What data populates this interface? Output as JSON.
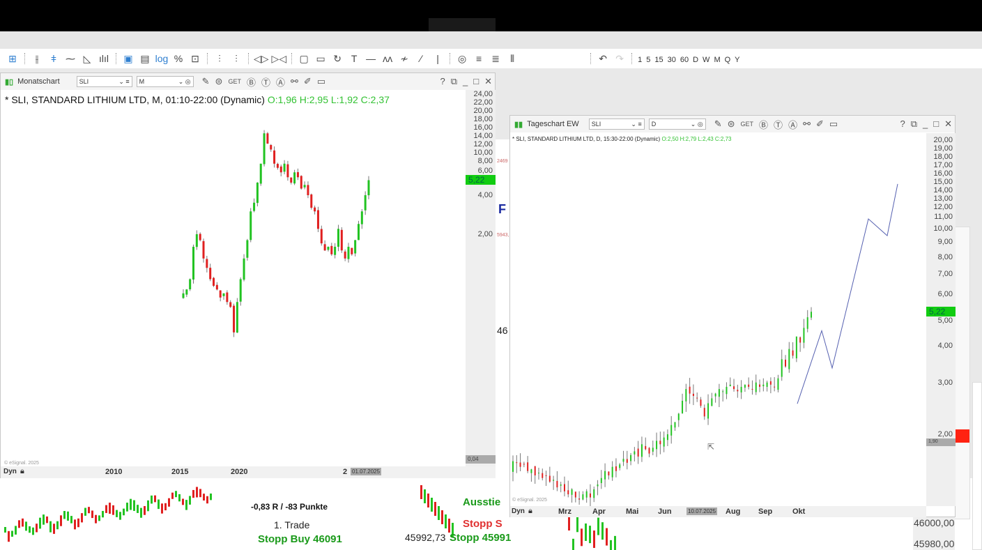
{
  "toolbar": {
    "icons": [
      {
        "name": "crosshair-icon",
        "glyph": "⊞",
        "active": true
      },
      {
        "sep": true
      },
      {
        "name": "ohlc-bars-icon",
        "glyph": "⫲"
      },
      {
        "name": "candlestick-icon",
        "glyph": "ǂ",
        "active": true
      },
      {
        "name": "line-chart-icon",
        "glyph": "⁓"
      },
      {
        "name": "area-chart-icon",
        "glyph": "◺"
      },
      {
        "name": "volume-icon",
        "glyph": "ılıl"
      },
      {
        "sep": true
      },
      {
        "name": "auto-scale-icon",
        "glyph": "▣",
        "active": true
      },
      {
        "name": "scale-icon",
        "glyph": "▤"
      },
      {
        "name": "log-scale-icon",
        "glyph": "log",
        "active": true
      },
      {
        "name": "percent-icon",
        "glyph": "%"
      },
      {
        "name": "reset-scale-icon",
        "glyph": "⊡"
      },
      {
        "sep": true
      },
      {
        "name": "expand-bars-icon",
        "glyph": "⫶"
      },
      {
        "name": "compress-bars-icon",
        "glyph": "⫶"
      },
      {
        "sep": true
      },
      {
        "name": "scroll-left-icon",
        "glyph": "◁▷"
      },
      {
        "name": "scroll-right-icon",
        "glyph": "▷◁"
      },
      {
        "sep": true
      },
      {
        "name": "frame-icon",
        "glyph": "▢"
      },
      {
        "name": "panel-icon",
        "glyph": "▭"
      },
      {
        "name": "refresh-icon",
        "glyph": "↻"
      },
      {
        "name": "text-tool-icon",
        "glyph": "T"
      },
      {
        "name": "horizontal-line-icon",
        "glyph": "—"
      },
      {
        "name": "elliott-wave-icon",
        "glyph": "ʌʌ"
      },
      {
        "name": "zigzag-icon",
        "glyph": "≁"
      },
      {
        "name": "trendline-icon",
        "glyph": "∕"
      },
      {
        "name": "vertical-line-icon",
        "glyph": "|"
      },
      {
        "sep": true
      },
      {
        "name": "target-icon",
        "glyph": "◎"
      },
      {
        "name": "menu-lines-icon",
        "glyph": "≡"
      },
      {
        "name": "list-icon",
        "glyph": "≣"
      },
      {
        "name": "columns-icon",
        "glyph": "⦀"
      }
    ],
    "undo_icon": "↶",
    "redo_icon": "↷",
    "intervals": [
      "1",
      "5",
      "15",
      "30",
      "60",
      "D",
      "W",
      "M",
      "Q",
      "Y"
    ]
  },
  "left_window": {
    "title": "Monatschart",
    "symbol": "SLI",
    "interval": "M",
    "legend": "* SLI, STANDARD LITHIUM LTD, M, 01:10-22:00 (Dynamic)",
    "ohlc": "O:1,96 H:2,95 L:1,92 C:2,37",
    "copyright": "© eSignal. 2025",
    "dyn": "Dyn",
    "cursor_date": "01.07.2025",
    "low_value": "0,04",
    "last_price": "5,22"
  },
  "right_window": {
    "title": "Tageschart EW",
    "symbol": "SLI",
    "interval": "D",
    "legend": "* SLI, STANDARD LITHIUM LTD, D, 15:30-22:00 (Dynamic)",
    "ohlc": "O:2,50 H:2,79 L:2,43 C:2,73",
    "copyright": "© eSignal. 2025",
    "dyn": "Dyn",
    "cursor_date": "10.07.2025",
    "low_value": "1,90",
    "last_price": "5,22"
  },
  "background_chart": {
    "texts": [
      "-0,83 R / -83 Punkte",
      "1. Trade",
      "Stopp Buy 46091",
      "45992,73",
      "Stopp 45991",
      "Ausstie",
      "Stopp S",
      "46000,00",
      "45980,00",
      "46",
      "F",
      "2469",
      "5943,"
    ]
  },
  "colors": {
    "up": "#22c322",
    "down": "#e02020",
    "last_price": "#11cc11",
    "wave": "#5560b0"
  },
  "chart_data": [
    {
      "type": "candlestick",
      "title": "Monatschart",
      "scale": "log",
      "ylim": [
        0.04,
        24
      ],
      "yticks": [
        "24,00",
        "22,00",
        "20,00",
        "18,00",
        "16,00",
        "14,00",
        "12,00",
        "10,00",
        "8,00",
        "6,00",
        "4,00",
        "2,00"
      ],
      "xticks": [
        "2010",
        "2015",
        "2020",
        "2"
      ],
      "closes": [
        0.7,
        0.75,
        0.9,
        1.6,
        2.0,
        1.8,
        1.3,
        1.1,
        0.9,
        0.8,
        0.75,
        0.65,
        0.7,
        0.6,
        0.55,
        0.35,
        0.6,
        0.9,
        1.3,
        1.8,
        3.0,
        3.5,
        5,
        7,
        12,
        10,
        9,
        7,
        6.5,
        6,
        7,
        5.5,
        5,
        6,
        5.5,
        4.5,
        4.8,
        4,
        3.2,
        3,
        2.2,
        1.7,
        1.5,
        1.6,
        1.4,
        1.6,
        2.2,
        1.5,
        1.3,
        1.6,
        1.4,
        1.8,
        2.4,
        3.0,
        4.0,
        5.22
      ],
      "last": 5.22
    },
    {
      "type": "candlestick",
      "title": "Tageschart EW",
      "scale": "log",
      "ylim": [
        1.9,
        20
      ],
      "yticks": [
        "20,00",
        "19,00",
        "18,00",
        "17,00",
        "16,00",
        "15,00",
        "14,00",
        "13,00",
        "12,00",
        "11,00",
        "10,00",
        "9,00",
        "8,00",
        "7,00",
        "6,00",
        "5,00",
        "4,00",
        "3,00",
        "2,00"
      ],
      "xticks": [
        "Mrz",
        "Apr",
        "Mai",
        "Jun",
        "Aug",
        "Sep",
        "Okt"
      ],
      "closes": [
        1.62,
        1.6,
        1.55,
        1.58,
        1.5,
        1.52,
        1.45,
        1.48,
        1.42,
        1.45,
        1.38,
        1.4,
        1.32,
        1.35,
        1.28,
        1.25,
        1.3,
        1.22,
        1.2,
        1.25,
        1.28,
        1.22,
        1.3,
        1.35,
        1.42,
        1.5,
        1.45,
        1.55,
        1.5,
        1.58,
        1.65,
        1.6,
        1.7,
        1.75,
        1.68,
        1.85,
        1.78,
        1.72,
        1.8,
        1.9,
        1.85,
        1.95,
        2.0,
        2.15,
        2.2,
        2.35,
        2.6,
        2.85,
        2.75,
        2.7,
        2.65,
        2.5,
        2.3,
        2.55,
        2.65,
        2.75,
        2.85,
        2.8,
        2.9,
        2.95,
        2.85,
        2.8,
        2.9,
        2.95,
        2.9,
        2.85,
        3.0,
        2.9,
        2.95,
        3.0,
        2.95,
        2.9,
        3.1,
        3.6,
        3.4,
        3.9,
        3.7,
        4.3,
        4.1,
        4.6,
        5.0,
        5.22
      ],
      "last": 5.22,
      "wave_projection": [
        2.54,
        4.5,
        3.36,
        10.8,
        9.47,
        14.2
      ]
    }
  ]
}
